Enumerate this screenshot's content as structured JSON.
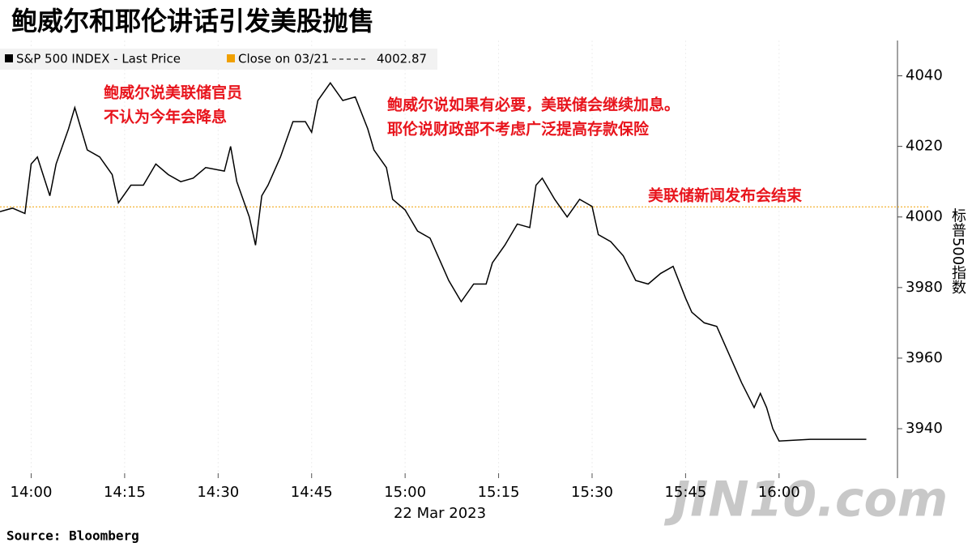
{
  "chart_data": {
    "type": "line",
    "title": "鲍威尔和耶伦讲话引发美股抛售",
    "x_label": "22 Mar 2023",
    "y_label": "标普500指数",
    "source": "Source:  Bloomberg",
    "watermark": "JIN10.com",
    "x": [
      "13:55",
      "13:57",
      "13:59",
      "14:00",
      "14:01",
      "14:03",
      "14:04",
      "14:06",
      "14:07",
      "14:08",
      "14:09",
      "14:11",
      "14:13",
      "14:14",
      "14:16",
      "14:18",
      "14:20",
      "14:22",
      "14:24",
      "14:26",
      "14:28",
      "14:31",
      "14:32",
      "14:33",
      "14:35",
      "14:36",
      "14:37",
      "14:38",
      "14:40",
      "14:42",
      "14:44",
      "14:45",
      "14:46",
      "14:48",
      "14:50",
      "14:52",
      "14:54",
      "14:55",
      "14:57",
      "14:58",
      "15:00",
      "15:02",
      "15:04",
      "15:06",
      "15:07",
      "15:09",
      "15:11",
      "15:13",
      "15:14",
      "15:16",
      "15:18",
      "15:20",
      "15:21",
      "15:22",
      "15:24",
      "15:26",
      "15:28",
      "15:30",
      "15:31",
      "15:33",
      "15:35",
      "15:37",
      "15:39",
      "15:41",
      "15:43",
      "15:45",
      "15:46",
      "15:48",
      "15:50",
      "15:52",
      "15:54",
      "15:56",
      "15:57",
      "15:58",
      "15:59",
      "16:00",
      "16:05",
      "16:14"
    ],
    "series": [
      {
        "name": "S&P 500 INDEX - Last Price",
        "color": "#000000",
        "values": [
          4001.5,
          4002.5,
          4001,
          4015,
          4017,
          4006,
          4015,
          4025,
          4031,
          4025,
          4019,
          4017,
          4012,
          4004,
          4009,
          4009,
          4015,
          4012,
          4010,
          4011,
          4014,
          4013,
          4020,
          4010,
          4000,
          3992,
          4006,
          4009,
          4017,
          4027,
          4027,
          4024,
          4033,
          4038,
          4033,
          4034,
          4025,
          4019,
          4014,
          4005,
          4002,
          3996,
          3994,
          3986,
          3982,
          3976,
          3981,
          3981,
          3987,
          3992,
          3998,
          3997,
          4009,
          4011,
          4005,
          4000,
          4005,
          4003,
          3995,
          3993,
          3989,
          3982,
          3981,
          3984,
          3986,
          3977,
          3973,
          3970,
          3969,
          3961,
          3953,
          3946,
          3950,
          3946,
          3940,
          3936.5,
          3937,
          3937
        ]
      }
    ],
    "reference_line": {
      "name": "Close on 03/21",
      "value": 4002.87,
      "color": "#f0a000"
    },
    "xlim": [
      "13:55",
      "16:19"
    ],
    "xticks": [
      "14:00",
      "14:15",
      "14:30",
      "14:45",
      "15:00",
      "15:15",
      "15:30",
      "15:45",
      "16:00"
    ],
    "ylim": [
      3926,
      4050
    ],
    "yticks": [
      3940,
      3960,
      3980,
      4000,
      4020,
      4040
    ],
    "annotations": [
      [
        "鲍威尔说美联储官员",
        "不认为今年会降息"
      ],
      [
        "鲍威尔说如果有必要，美联储会继续加息。",
        "耶伦说财政部不考虑广泛提高存款保险"
      ],
      [
        "美联储新闻发布会结束"
      ]
    ],
    "annotation_color": "#e8141c"
  }
}
